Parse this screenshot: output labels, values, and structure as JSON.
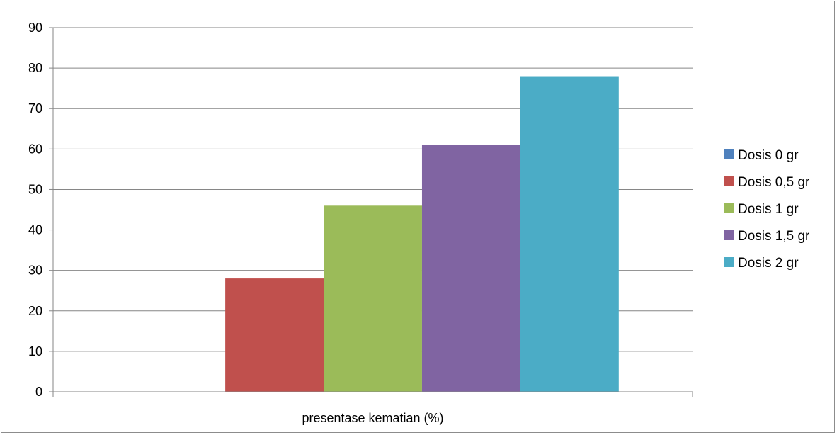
{
  "chart_data": {
    "type": "bar",
    "categories": [
      "presentase kematian (%)"
    ],
    "series": [
      {
        "name": "Dosis 0 gr",
        "values": [
          0
        ],
        "color": "#4f81bd"
      },
      {
        "name": "Dosis 0,5 gr",
        "values": [
          28
        ],
        "color": "#c0504d"
      },
      {
        "name": "Dosis 1 gr",
        "values": [
          46
        ],
        "color": "#9bbb59"
      },
      {
        "name": "Dosis 1,5 gr",
        "values": [
          61
        ],
        "color": "#8064a2"
      },
      {
        "name": "Dosis 2 gr",
        "values": [
          78
        ],
        "color": "#4bacc6"
      }
    ],
    "ylim": [
      0,
      90
    ],
    "yticks": [
      "0",
      "10",
      "20",
      "30",
      "40",
      "50",
      "60",
      "70",
      "80",
      "90"
    ],
    "grid": true,
    "legend_position": "right"
  }
}
